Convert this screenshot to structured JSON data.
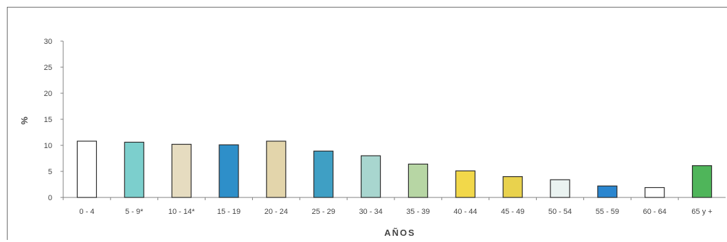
{
  "chart_data": {
    "type": "bar",
    "title": "",
    "xlabel": "AÑOS",
    "ylabel": "%",
    "ylim": [
      0,
      30
    ],
    "yticks": [
      0,
      5,
      10,
      15,
      20,
      25,
      30
    ],
    "grid": false,
    "categories": [
      "0 - 4",
      "5 - 9*",
      "10 - 14*",
      "15 - 19",
      "20 - 24",
      "25 - 29",
      "30 - 34",
      "35 - 39",
      "40 - 44",
      "45 - 49",
      "50 - 54",
      "55 - 59",
      "60 - 64",
      "65 y +"
    ],
    "values": [
      10.8,
      10.6,
      10.2,
      10.1,
      10.8,
      8.9,
      8.0,
      6.4,
      5.1,
      4.0,
      3.4,
      2.2,
      1.9,
      6.1
    ],
    "colors": [
      "#ffffff",
      "#7ccfcd",
      "#e6dcc0",
      "#2e8fc9",
      "#e3d5ab",
      "#3f9fc4",
      "#a8d6cf",
      "#b7d6a4",
      "#f2d84a",
      "#e9d24d",
      "#eaf3f1",
      "#2a86cf",
      "#ffffff",
      "#4fb55a"
    ]
  }
}
